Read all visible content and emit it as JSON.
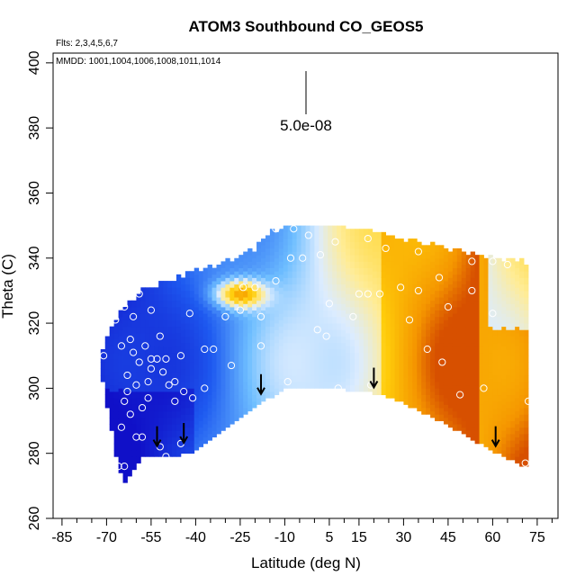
{
  "chart_data": {
    "type": "heatmap",
    "title": "ATOM3 Southbound CO_GEOS5",
    "subtitle_flights": "Flts: 2,3,4,5,6,7",
    "subtitle_dates": "MMDD: 1001,1004,1006,1008,1011,1014",
    "xlabel": "Latitude (deg N)",
    "ylabel": "Theta (C)",
    "xlim": [
      -88,
      82
    ],
    "ylim": [
      260,
      403
    ],
    "x_ticks": [
      -85,
      -70,
      -55,
      -40,
      -25,
      -10,
      5,
      15,
      30,
      45,
      60,
      75
    ],
    "x_minor_ticks": [
      -80,
      -75,
      -65,
      -60,
      -50,
      -45,
      -35,
      -30,
      -20,
      -15,
      -5,
      0,
      10,
      20,
      25,
      35,
      40,
      50,
      55,
      65,
      70,
      80
    ],
    "y_ticks": [
      260,
      280,
      300,
      320,
      340,
      360,
      380,
      400
    ],
    "scale_bar_label": "5.0e-08",
    "colors": {
      "low": "#1010c8",
      "mid_low": "#1e6ef0",
      "mid": "#7ec8ff",
      "neutral": "#dcebff",
      "mid_high": "#ffe890",
      "high": "#ffc800",
      "peak": "#e06000"
    },
    "arrows_at_lat": [
      {
        "lat": -53,
        "theta": 285
      },
      {
        "lat": -44,
        "theta": 286
      },
      {
        "lat": -18,
        "theta": 301
      },
      {
        "lat": 20,
        "theta": 303
      },
      {
        "lat": 61,
        "theta": 285
      }
    ],
    "sample_points": [
      {
        "lat": -66,
        "theta": 276
      },
      {
        "lat": -64,
        "theta": 276
      },
      {
        "lat": -60,
        "theta": 285
      },
      {
        "lat": -58,
        "theta": 285
      },
      {
        "lat": -52,
        "theta": 282
      },
      {
        "lat": -50,
        "theta": 279
      },
      {
        "lat": -45,
        "theta": 283
      },
      {
        "lat": -65,
        "theta": 288
      },
      {
        "lat": -62,
        "theta": 292
      },
      {
        "lat": -58,
        "theta": 294
      },
      {
        "lat": -56,
        "theta": 297
      },
      {
        "lat": -64,
        "theta": 296
      },
      {
        "lat": -63,
        "theta": 299
      },
      {
        "lat": -60,
        "theta": 301
      },
      {
        "lat": -56,
        "theta": 302
      },
      {
        "lat": -63,
        "theta": 304
      },
      {
        "lat": -59,
        "theta": 308
      },
      {
        "lat": -55,
        "theta": 306
      },
      {
        "lat": -53,
        "theta": 309
      },
      {
        "lat": -51,
        "theta": 305
      },
      {
        "lat": -49,
        "theta": 301
      },
      {
        "lat": -47,
        "theta": 302
      },
      {
        "lat": -44,
        "theta": 299
      },
      {
        "lat": -47,
        "theta": 296
      },
      {
        "lat": -41,
        "theta": 297
      },
      {
        "lat": -45,
        "theta": 310
      },
      {
        "lat": -50,
        "theta": 309
      },
      {
        "lat": -55,
        "theta": 309
      },
      {
        "lat": -61,
        "theta": 311
      },
      {
        "lat": -65,
        "theta": 313
      },
      {
        "lat": -71,
        "theta": 310
      },
      {
        "lat": -62,
        "theta": 315
      },
      {
        "lat": -57,
        "theta": 313
      },
      {
        "lat": -52,
        "theta": 316
      },
      {
        "lat": -67,
        "theta": 321
      },
      {
        "lat": -64,
        "theta": 325
      },
      {
        "lat": -61,
        "theta": 322
      },
      {
        "lat": -55,
        "theta": 324
      },
      {
        "lat": -59,
        "theta": 329
      },
      {
        "lat": -42,
        "theta": 323
      },
      {
        "lat": -34,
        "theta": 312
      },
      {
        "lat": -28,
        "theta": 307
      },
      {
        "lat": -30,
        "theta": 322
      },
      {
        "lat": -25,
        "theta": 324
      },
      {
        "lat": -24,
        "theta": 331
      },
      {
        "lat": -20,
        "theta": 331
      },
      {
        "lat": -18,
        "theta": 322
      },
      {
        "lat": -18,
        "theta": 313
      },
      {
        "lat": -9,
        "theta": 302
      },
      {
        "lat": -13,
        "theta": 333
      },
      {
        "lat": -8,
        "theta": 340
      },
      {
        "lat": -4,
        "theta": 340
      },
      {
        "lat": 2,
        "theta": 341
      },
      {
        "lat": 7,
        "theta": 345
      },
      {
        "lat": -2,
        "theta": 347
      },
      {
        "lat": -13,
        "theta": 349
      },
      {
        "lat": -7,
        "theta": 349
      },
      {
        "lat": 5,
        "theta": 326
      },
      {
        "lat": 1,
        "theta": 318
      },
      {
        "lat": 4,
        "theta": 316
      },
      {
        "lat": 13,
        "theta": 322
      },
      {
        "lat": 8,
        "theta": 300
      },
      {
        "lat": 19,
        "theta": 301
      },
      {
        "lat": 15,
        "theta": 329
      },
      {
        "lat": 18,
        "theta": 329
      },
      {
        "lat": 22,
        "theta": 329
      },
      {
        "lat": 29,
        "theta": 331
      },
      {
        "lat": 32,
        "theta": 321
      },
      {
        "lat": 35,
        "theta": 330
      },
      {
        "lat": 38,
        "theta": 312
      },
      {
        "lat": 42,
        "theta": 334
      },
      {
        "lat": 45,
        "theta": 325
      },
      {
        "lat": 49,
        "theta": 298
      },
      {
        "lat": 43,
        "theta": 308
      },
      {
        "lat": 53,
        "theta": 330
      },
      {
        "lat": 57,
        "theta": 300
      },
      {
        "lat": 60,
        "theta": 323
      },
      {
        "lat": 65,
        "theta": 338
      },
      {
        "lat": 53,
        "theta": 339
      },
      {
        "lat": 60,
        "theta": 339
      },
      {
        "lat": 18,
        "theta": 346
      },
      {
        "lat": 24,
        "theta": 343
      },
      {
        "lat": 35,
        "theta": 342
      },
      {
        "lat": 72,
        "theta": 296
      },
      {
        "lat": 71,
        "theta": 277
      },
      {
        "lat": -37,
        "theta": 312
      },
      {
        "lat": -37,
        "theta": 300
      }
    ]
  }
}
